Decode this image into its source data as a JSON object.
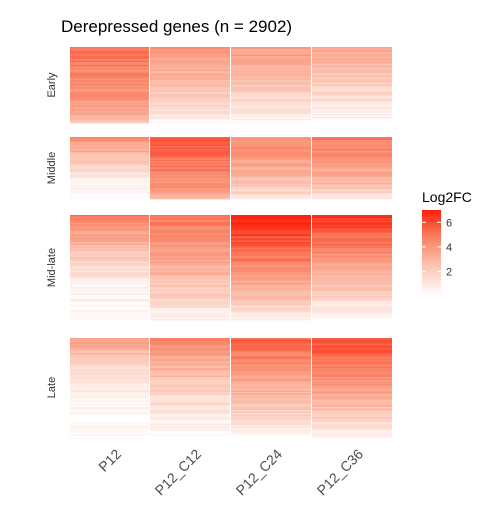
{
  "chart_data": {
    "type": "heatmap",
    "title": "Derepressed genes (n = 2902)",
    "columns": [
      "P12",
      "P12_C12",
      "P12_C24",
      "P12_C36"
    ],
    "row_groups": [
      {
        "name": "Early",
        "mean_log2fc": [
          4.2,
          2.5,
          2.2,
          1.9
        ],
        "top_log2fc": [
          5.0,
          4.0,
          3.8,
          3.5
        ]
      },
      {
        "name": "Middle",
        "mean_log2fc": [
          1.8,
          4.6,
          3.1,
          3.3
        ],
        "top_log2fc": [
          4.5,
          5.5,
          4.5,
          4.8
        ]
      },
      {
        "name": "Mid-late",
        "mean_log2fc": [
          1.9,
          3.0,
          4.2,
          3.5
        ],
        "top_log2fc": [
          5.0,
          5.0,
          7.0,
          6.5
        ]
      },
      {
        "name": "Late",
        "mean_log2fc": [
          1.2,
          2.1,
          3.1,
          3.5
        ],
        "top_log2fc": [
          4.0,
          4.5,
          5.5,
          6.0
        ]
      }
    ],
    "legend": {
      "title": "Log2FC",
      "ticks": [
        2,
        4,
        6
      ],
      "range": [
        0,
        7
      ],
      "low_color": "#ffffff",
      "high_color": "#ff0000",
      "placement": "right"
    }
  }
}
